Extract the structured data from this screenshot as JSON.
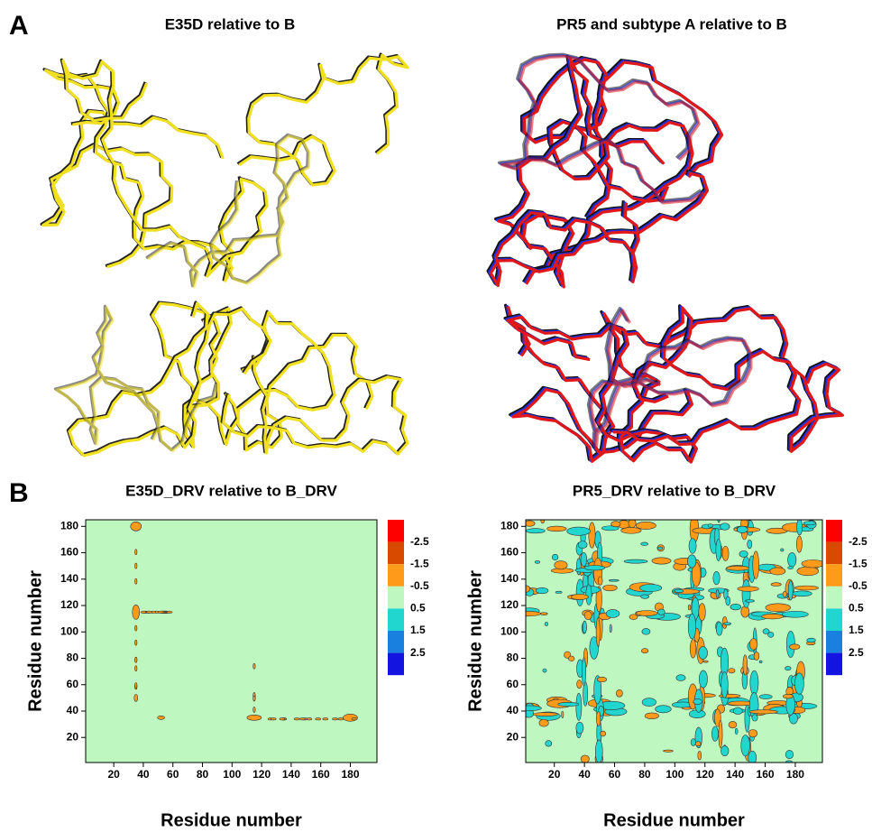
{
  "panel_a": {
    "label": "A",
    "titles": [
      "E35D relative to B",
      "PR5 and subtype A relative to B"
    ]
  },
  "panel_b": {
    "label": "B",
    "plots": [
      {
        "title": "E35D_DRV relative to B_DRV",
        "x_label": "Residue number",
        "y_label": "Residue number",
        "xlim": [
          1,
          198
        ],
        "ylim": [
          1,
          185
        ],
        "xticks": [
          20,
          40,
          60,
          80,
          100,
          120,
          140,
          160,
          180
        ],
        "yticks": [
          20,
          40,
          60,
          80,
          100,
          120,
          140,
          160,
          180
        ]
      },
      {
        "title": "PR5_DRV relative to B_DRV",
        "x_label": "Residue number",
        "y_label": "Residue number",
        "xlim": [
          1,
          198
        ],
        "ylim": [
          1,
          185
        ],
        "xticks": [
          20,
          40,
          60,
          80,
          100,
          120,
          140,
          160,
          180
        ],
        "yticks": [
          20,
          40,
          60,
          80,
          100,
          120,
          140,
          160,
          180
        ]
      }
    ],
    "colorbar": {
      "levels": [
        -2.5,
        -1.5,
        -0.5,
        0.5,
        1.5,
        2.5
      ],
      "colors": [
        "#ff0000",
        "#d84a00",
        "#ff9a1a",
        "#bff7c0",
        "#22d6d0",
        "#1a80e0",
        "#1414e0"
      ]
    }
  }
}
